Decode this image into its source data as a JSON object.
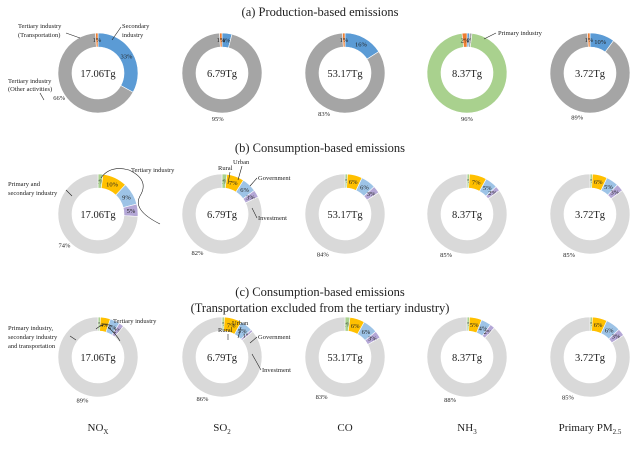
{
  "chart_data": {
    "type": "pie",
    "variant": "donut",
    "colors": {
      "primary": "#a9d18e",
      "secondary": "#a5a5a5",
      "tertiary_transportation": "#5b9bd5",
      "tertiary_other": "#ed7d31",
      "consumption_base": "#d9d9d9",
      "rural": "#a9d18e",
      "urban": "#ffc000",
      "government": "#9dc3e6",
      "investment": "#b4a7d6"
    },
    "pollutants": [
      {
        "name": "NO",
        "sub": "X"
      },
      {
        "name": "SO",
        "sub": "2"
      },
      {
        "name": "CO",
        "sub": ""
      },
      {
        "name": "NH",
        "sub": "3"
      },
      {
        "name": "Primary PM",
        "sub": "2.5"
      }
    ],
    "totals": [
      "17.06Tg",
      "6.79Tg",
      "53.17Tg",
      "8.37Tg",
      "3.72Tg"
    ],
    "panels": [
      {
        "title": "(a) Production-based emissions",
        "charts": [
          {
            "slices": [
              {
                "cat": "tertiary_transportation",
                "value": 33,
                "label": "33%"
              },
              {
                "cat": "secondary",
                "value": 66,
                "label": "66%"
              },
              {
                "cat": "tertiary_other",
                "value": 1,
                "label": "1%"
              }
            ]
          },
          {
            "slices": [
              {
                "cat": "tertiary_transportation",
                "value": 4,
                "label": "4%"
              },
              {
                "cat": "secondary",
                "value": 95,
                "label": "95%"
              },
              {
                "cat": "tertiary_other",
                "value": 1,
                "label": "1%"
              }
            ]
          },
          {
            "slices": [
              {
                "cat": "tertiary_transportation",
                "value": 16,
                "label": "16%"
              },
              {
                "cat": "secondary",
                "value": 83,
                "label": "83%"
              },
              {
                "cat": "tertiary_other",
                "value": 1,
                "label": "1%"
              }
            ]
          },
          {
            "slices": [
              {
                "cat": "tertiary_transportation",
                "value": 1,
                "label": "1%"
              },
              {
                "cat": "secondary",
                "value": 1,
                "label": "1%"
              },
              {
                "cat": "primary",
                "value": 96,
                "label": "96%"
              },
              {
                "cat": "tertiary_other",
                "value": 2,
                "label": "2%"
              }
            ]
          },
          {
            "slices": [
              {
                "cat": "tertiary_transportation",
                "value": 10,
                "label": "10%"
              },
              {
                "cat": "secondary",
                "value": 89,
                "label": "89%"
              },
              {
                "cat": "tertiary_other",
                "value": 1,
                "label": "1%"
              }
            ]
          }
        ],
        "annotations": {
          "tertiary_transportation": "Tertiary industry (Transportation)",
          "secondary": "Secondary industry",
          "tertiary_other": "Tertiary industry (Other activities)",
          "primary": "Primary industry"
        }
      },
      {
        "title": "(b) Consumption-based emissions",
        "charts": [
          {
            "slices": [
              {
                "cat": "rural",
                "value": 2,
                "label": "2%"
              },
              {
                "cat": "urban",
                "value": 10,
                "label": "10%"
              },
              {
                "cat": "government",
                "value": 9,
                "label": "9%"
              },
              {
                "cat": "investment",
                "value": 5,
                "label": "5%"
              },
              {
                "cat": "consumption_base",
                "value": 74,
                "label": "74%"
              }
            ]
          },
          {
            "slices": [
              {
                "cat": "rural",
                "value": 2,
                "label": "2%"
              },
              {
                "cat": "urban",
                "value": 7,
                "label": "7%"
              },
              {
                "cat": "government",
                "value": 6,
                "label": "6%"
              },
              {
                "cat": "investment",
                "value": 3,
                "label": "3%"
              },
              {
                "cat": "consumption_base",
                "value": 82,
                "label": "82%"
              }
            ]
          },
          {
            "slices": [
              {
                "cat": "rural",
                "value": 1,
                "label": "1%"
              },
              {
                "cat": "urban",
                "value": 6,
                "label": "6%"
              },
              {
                "cat": "government",
                "value": 6,
                "label": "6%"
              },
              {
                "cat": "investment",
                "value": 3,
                "label": "3%"
              },
              {
                "cat": "consumption_base",
                "value": 84,
                "label": "84%"
              }
            ]
          },
          {
            "slices": [
              {
                "cat": "rural",
                "value": 1,
                "label": "1%"
              },
              {
                "cat": "urban",
                "value": 7,
                "label": "7%"
              },
              {
                "cat": "government",
                "value": 5,
                "label": "5%"
              },
              {
                "cat": "investment",
                "value": 2,
                "label": "2%"
              },
              {
                "cat": "consumption_base",
                "value": 85,
                "label": "85%"
              }
            ]
          },
          {
            "slices": [
              {
                "cat": "rural",
                "value": 1,
                "label": "1%"
              },
              {
                "cat": "urban",
                "value": 6,
                "label": "6%"
              },
              {
                "cat": "government",
                "value": 5,
                "label": "5%"
              },
              {
                "cat": "investment",
                "value": 3,
                "label": "3%"
              },
              {
                "cat": "consumption_base",
                "value": 85,
                "label": "85%"
              }
            ]
          }
        ],
        "annotations": {
          "base": "Primary and secondary industry",
          "tertiary": "Tertiary industry",
          "rural": "Rural",
          "urban": "Urban",
          "government": "Government",
          "investment": "Investment"
        }
      },
      {
        "title": "(c) Consumption-based emissions",
        "subtitle": "(Transportation excluded from the tertiary industry)",
        "charts": [
          {
            "slices": [
              {
                "cat": "rural",
                "value": 1,
                "label": "1%"
              },
              {
                "cat": "urban",
                "value": 4,
                "label": "4%"
              },
              {
                "cat": "government",
                "value": 4,
                "label": "4%"
              },
              {
                "cat": "investment",
                "value": 2,
                "label": "2%"
              },
              {
                "cat": "consumption_base",
                "value": 89,
                "label": "89%"
              }
            ]
          },
          {
            "slices": [
              {
                "cat": "rural",
                "value": 1,
                "label": "1%"
              },
              {
                "cat": "urban",
                "value": 7,
                "label": "7%"
              },
              {
                "cat": "government",
                "value": 5,
                "label": "5%"
              },
              {
                "cat": "investment",
                "value": 1,
                "label": "1%"
              },
              {
                "cat": "consumption_base",
                "value": 86,
                "label": "86%"
              }
            ]
          },
          {
            "slices": [
              {
                "cat": "rural",
                "value": 2,
                "label": "2%"
              },
              {
                "cat": "urban",
                "value": 6,
                "label": "6%"
              },
              {
                "cat": "government",
                "value": 6,
                "label": "6%"
              },
              {
                "cat": "investment",
                "value": 3,
                "label": "3%"
              },
              {
                "cat": "consumption_base",
                "value": 83,
                "label": "83%"
              }
            ]
          },
          {
            "slices": [
              {
                "cat": "rural",
                "value": 1,
                "label": "1%"
              },
              {
                "cat": "urban",
                "value": 5,
                "label": "5%"
              },
              {
                "cat": "government",
                "value": 4,
                "label": "4%"
              },
              {
                "cat": "investment",
                "value": 2,
                "label": "2%"
              },
              {
                "cat": "consumption_base",
                "value": 88,
                "label": "88%"
              }
            ]
          },
          {
            "slices": [
              {
                "cat": "rural",
                "value": 1,
                "label": "1%"
              },
              {
                "cat": "urban",
                "value": 6,
                "label": "6%"
              },
              {
                "cat": "government",
                "value": 6,
                "label": "6%"
              },
              {
                "cat": "investment",
                "value": 3,
                "label": "3%"
              },
              {
                "cat": "consumption_base",
                "value": 85,
                "label": "85%"
              }
            ]
          }
        ],
        "annotations": {
          "base": "Primary industry, secondary industry and transportation",
          "tertiary": "Tertiary industry",
          "rural": "Rural",
          "urban": "Urban",
          "government": "Government",
          "investment": "Investment"
        }
      }
    ]
  }
}
